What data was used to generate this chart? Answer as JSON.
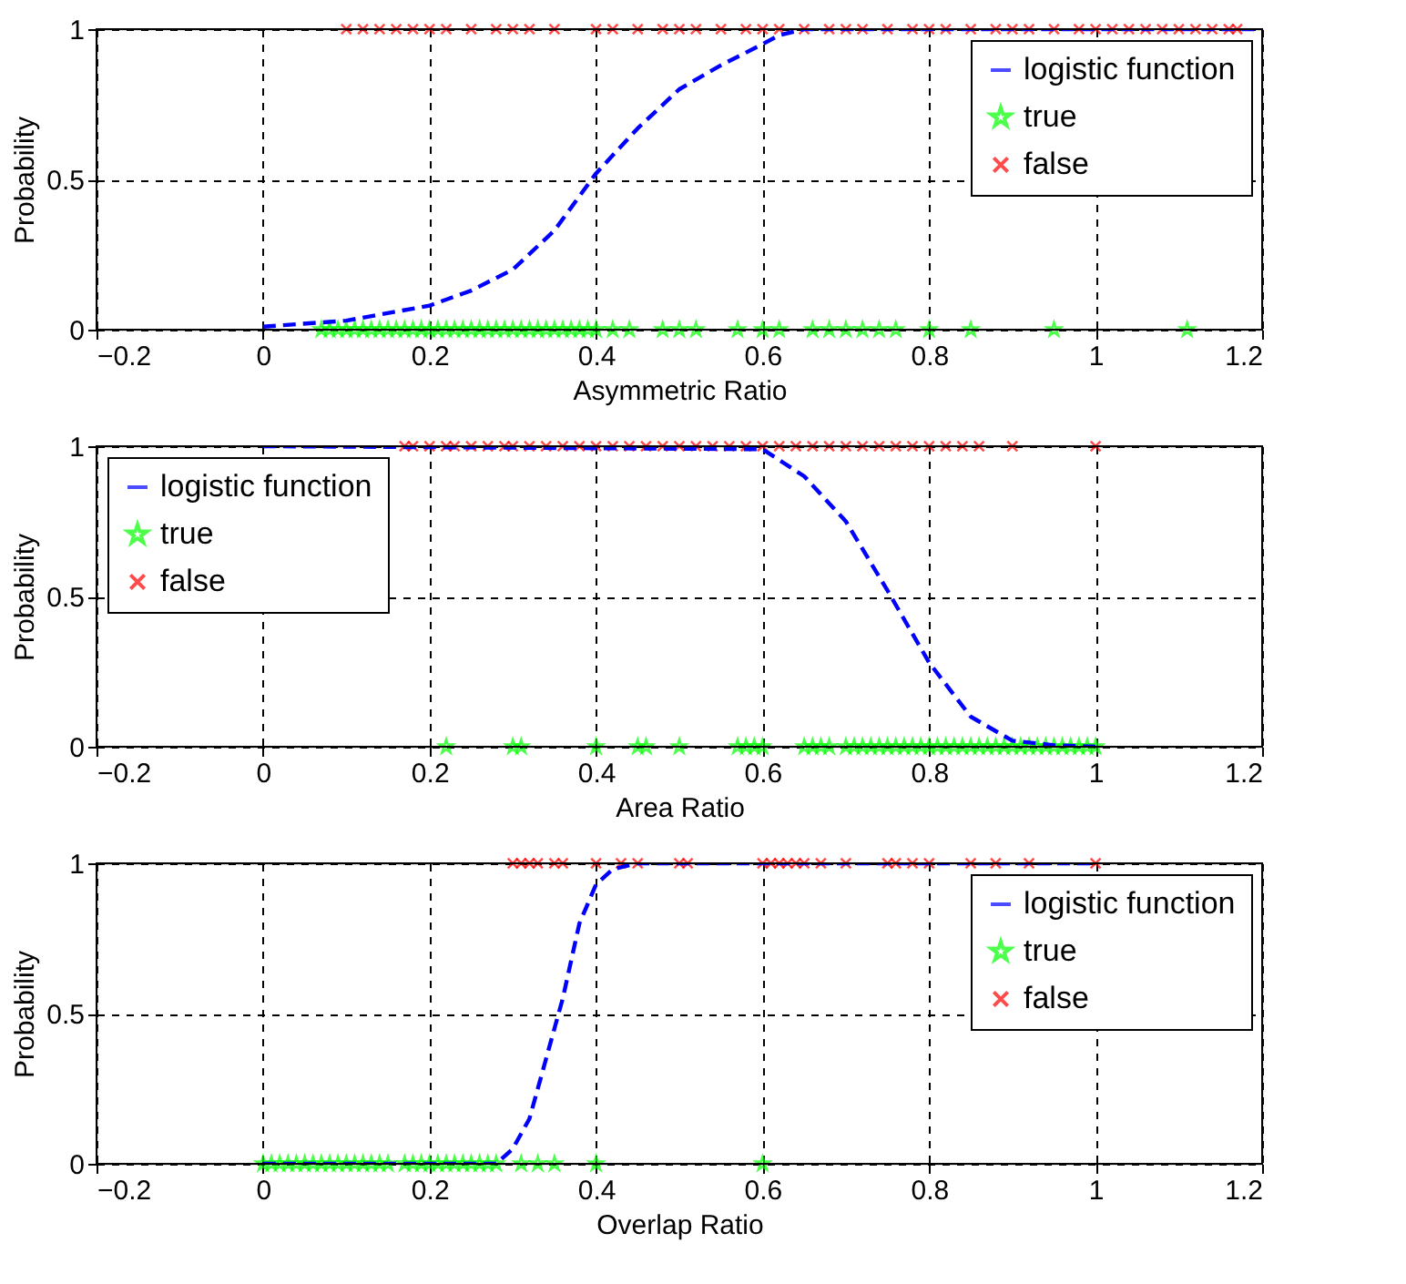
{
  "chart_data": [
    {
      "type": "scatter",
      "xlabel": "Asymmetric Ratio",
      "ylabel": "Probability",
      "xlim": [
        -0.2,
        1.2
      ],
      "xticks": [
        -0.2,
        0,
        0.2,
        0.4,
        0.6,
        0.8,
        1,
        1.2
      ],
      "ylim": [
        0,
        1
      ],
      "yticks": [
        0,
        0.5,
        1
      ],
      "grid": true,
      "legend": "top right",
      "series": [
        {
          "name": "logistic function",
          "type": "line",
          "color": "#0000ff",
          "line_style": "dashed",
          "marker": "none",
          "x": [
            0,
            0.1,
            0.2,
            0.25,
            0.3,
            0.35,
            0.4,
            0.45,
            0.5,
            0.55,
            0.6,
            0.62,
            0.65,
            1.2
          ],
          "values": [
            0.01,
            0.03,
            0.08,
            0.13,
            0.2,
            0.33,
            0.52,
            0.67,
            0.8,
            0.88,
            0.95,
            0.98,
            1,
            1
          ]
        },
        {
          "name": "true",
          "type": "scatter",
          "color": "#00ff00",
          "marker": "star",
          "x": [
            0.07,
            0.08,
            0.09,
            0.1,
            0.11,
            0.12,
            0.13,
            0.14,
            0.15,
            0.16,
            0.17,
            0.18,
            0.19,
            0.2,
            0.21,
            0.22,
            0.23,
            0.24,
            0.25,
            0.26,
            0.27,
            0.28,
            0.29,
            0.3,
            0.31,
            0.32,
            0.33,
            0.34,
            0.35,
            0.36,
            0.37,
            0.38,
            0.39,
            0.4,
            0.42,
            0.44,
            0.48,
            0.5,
            0.52,
            0.57,
            0.6,
            0.62,
            0.66,
            0.68,
            0.7,
            0.72,
            0.74,
            0.76,
            0.8,
            0.85,
            0.95,
            1.11
          ],
          "values": [
            0,
            0,
            0,
            0,
            0,
            0,
            0,
            0,
            0,
            0,
            0,
            0,
            0,
            0,
            0,
            0,
            0,
            0,
            0,
            0,
            0,
            0,
            0,
            0,
            0,
            0,
            0,
            0,
            0,
            0,
            0,
            0,
            0,
            0,
            0,
            0,
            0,
            0,
            0,
            0,
            0,
            0,
            0,
            0,
            0,
            0,
            0,
            0,
            0,
            0,
            0,
            0
          ]
        },
        {
          "name": "false",
          "type": "scatter",
          "color": "#ff0000",
          "marker": "cross",
          "x": [
            0.1,
            0.12,
            0.14,
            0.16,
            0.18,
            0.2,
            0.22,
            0.25,
            0.28,
            0.3,
            0.32,
            0.35,
            0.4,
            0.42,
            0.45,
            0.48,
            0.5,
            0.52,
            0.55,
            0.58,
            0.6,
            0.62,
            0.65,
            0.68,
            0.7,
            0.72,
            0.75,
            0.78,
            0.8,
            0.82,
            0.85,
            0.88,
            0.9,
            0.92,
            0.95,
            0.98,
            1.0,
            1.02,
            1.04,
            1.06,
            1.08,
            1.1,
            1.12,
            1.14,
            1.16,
            1.17
          ],
          "values": [
            1,
            1,
            1,
            1,
            1,
            1,
            1,
            1,
            1,
            1,
            1,
            1,
            1,
            1,
            1,
            1,
            1,
            1,
            1,
            1,
            1,
            1,
            1,
            1,
            1,
            1,
            1,
            1,
            1,
            1,
            1,
            1,
            1,
            1,
            1,
            1,
            1,
            1,
            1,
            1,
            1,
            1,
            1,
            1,
            1,
            1
          ]
        }
      ]
    },
    {
      "type": "scatter",
      "xlabel": "Area Ratio",
      "ylabel": "Probability",
      "xlim": [
        -0.2,
        1.2
      ],
      "xticks": [
        -0.2,
        0,
        0.2,
        0.4,
        0.6,
        0.8,
        1,
        1.2
      ],
      "ylim": [
        0,
        1
      ],
      "yticks": [
        0,
        0.5,
        1
      ],
      "grid": true,
      "legend": "top left",
      "series": [
        {
          "name": "logistic function",
          "type": "line",
          "color": "#0000ff",
          "line_style": "dashed",
          "marker": "none",
          "x": [
            0,
            0.6,
            0.65,
            0.7,
            0.75,
            0.8,
            0.85,
            0.9,
            0.95,
            1
          ],
          "values": [
            1,
            0.99,
            0.9,
            0.75,
            0.52,
            0.28,
            0.1,
            0.02,
            0.005,
            0
          ]
        },
        {
          "name": "true",
          "type": "scatter",
          "color": "#00ff00",
          "marker": "star",
          "x": [
            0.22,
            0.3,
            0.31,
            0.4,
            0.45,
            0.46,
            0.5,
            0.57,
            0.58,
            0.59,
            0.6,
            0.65,
            0.66,
            0.67,
            0.68,
            0.7,
            0.71,
            0.72,
            0.73,
            0.74,
            0.75,
            0.76,
            0.77,
            0.78,
            0.79,
            0.8,
            0.81,
            0.82,
            0.83,
            0.84,
            0.85,
            0.86,
            0.87,
            0.88,
            0.89,
            0.9,
            0.91,
            0.92,
            0.93,
            0.94,
            0.95,
            0.96,
            0.97,
            0.98,
            0.99,
            1.0
          ],
          "values": [
            0,
            0,
            0,
            0,
            0,
            0,
            0,
            0,
            0,
            0,
            0,
            0,
            0,
            0,
            0,
            0,
            0,
            0,
            0,
            0,
            0,
            0,
            0,
            0,
            0,
            0,
            0,
            0,
            0,
            0,
            0,
            0,
            0,
            0,
            0,
            0,
            0,
            0,
            0,
            0,
            0,
            0,
            0,
            0,
            0,
            0
          ]
        },
        {
          "name": "false",
          "type": "scatter",
          "color": "#ff0000",
          "marker": "cross",
          "x": [
            0.17,
            0.18,
            0.2,
            0.22,
            0.23,
            0.25,
            0.27,
            0.29,
            0.3,
            0.32,
            0.34,
            0.36,
            0.38,
            0.4,
            0.42,
            0.44,
            0.46,
            0.48,
            0.5,
            0.52,
            0.54,
            0.56,
            0.58,
            0.6,
            0.62,
            0.64,
            0.66,
            0.68,
            0.7,
            0.72,
            0.74,
            0.76,
            0.78,
            0.8,
            0.82,
            0.84,
            0.86,
            0.9,
            1.0
          ],
          "values": [
            1,
            1,
            1,
            1,
            1,
            1,
            1,
            1,
            1,
            1,
            1,
            1,
            1,
            1,
            1,
            1,
            1,
            1,
            1,
            1,
            1,
            1,
            1,
            1,
            1,
            1,
            1,
            1,
            1,
            1,
            1,
            1,
            1,
            1,
            1,
            1,
            1,
            1,
            1
          ]
        }
      ]
    },
    {
      "type": "scatter",
      "xlabel": "Overlap Ratio",
      "ylabel": "Probability",
      "xlim": [
        -0.2,
        1.2
      ],
      "xticks": [
        -0.2,
        0,
        0.2,
        0.4,
        0.6,
        0.8,
        1,
        1.2
      ],
      "ylim": [
        0,
        1
      ],
      "yticks": [
        0,
        0.5,
        1
      ],
      "grid": true,
      "legend": "top right",
      "series": [
        {
          "name": "logistic function",
          "type": "line",
          "color": "#0000ff",
          "line_style": "dashed",
          "marker": "none",
          "x": [
            0,
            0.28,
            0.3,
            0.32,
            0.34,
            0.36,
            0.38,
            0.4,
            0.42,
            0.45,
            1
          ],
          "values": [
            0,
            0,
            0.05,
            0.15,
            0.35,
            0.55,
            0.8,
            0.93,
            0.98,
            1,
            1
          ]
        },
        {
          "name": "true",
          "type": "scatter",
          "color": "#00ff00",
          "marker": "star",
          "x": [
            0,
            0.01,
            0.02,
            0.03,
            0.04,
            0.05,
            0.06,
            0.07,
            0.08,
            0.09,
            0.1,
            0.11,
            0.12,
            0.13,
            0.14,
            0.15,
            0.17,
            0.18,
            0.19,
            0.2,
            0.21,
            0.22,
            0.23,
            0.24,
            0.25,
            0.26,
            0.27,
            0.28,
            0.31,
            0.33,
            0.35,
            0.4,
            0.6
          ],
          "values": [
            0,
            0,
            0,
            0,
            0,
            0,
            0,
            0,
            0,
            0,
            0,
            0,
            0,
            0,
            0,
            0,
            0,
            0,
            0,
            0,
            0,
            0,
            0,
            0,
            0,
            0,
            0,
            0,
            0,
            0,
            0,
            0,
            0
          ]
        },
        {
          "name": "false",
          "type": "scatter",
          "color": "#ff0000",
          "marker": "cross",
          "x": [
            0.3,
            0.31,
            0.32,
            0.33,
            0.35,
            0.36,
            0.4,
            0.43,
            0.45,
            0.5,
            0.51,
            0.6,
            0.61,
            0.62,
            0.63,
            0.64,
            0.65,
            0.67,
            0.7,
            0.75,
            0.76,
            0.78,
            0.8,
            0.85,
            0.88,
            0.92,
            1.0
          ],
          "values": [
            1,
            1,
            1,
            1,
            1,
            1,
            1,
            1,
            1,
            1,
            1,
            1,
            1,
            1,
            1,
            1,
            1,
            1,
            1,
            1,
            1,
            1,
            1,
            1,
            1,
            1,
            1
          ]
        }
      ]
    }
  ]
}
